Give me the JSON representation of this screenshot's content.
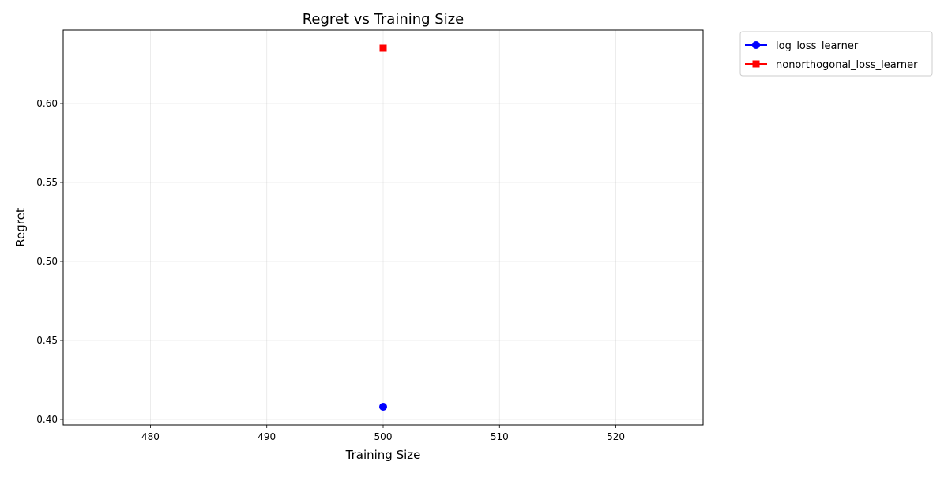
{
  "chart_data": {
    "type": "scatter",
    "title": "Regret vs Training Size",
    "xlabel": "Training Size",
    "ylabel": "Regret",
    "xlim": [
      472.5,
      527.5
    ],
    "ylim": [
      0.3965,
      0.6465
    ],
    "xticks": [
      480,
      490,
      500,
      510,
      520
    ],
    "yticks": [
      0.4,
      0.45,
      0.5,
      0.55,
      0.6
    ],
    "xtick_labels": [
      "480",
      "490",
      "500",
      "510",
      "520"
    ],
    "ytick_labels": [
      "0.40",
      "0.45",
      "0.50",
      "0.55",
      "0.60"
    ],
    "grid": true,
    "legend_position": "outside-top-right",
    "series": [
      {
        "name": "log_loss_learner",
        "color": "#0000ff",
        "marker": "circle",
        "x": [
          500
        ],
        "y": [
          0.408
        ]
      },
      {
        "name": "nonorthogonal_loss_learner",
        "color": "#ff0000",
        "marker": "square",
        "x": [
          500
        ],
        "y": [
          0.635
        ]
      }
    ]
  }
}
